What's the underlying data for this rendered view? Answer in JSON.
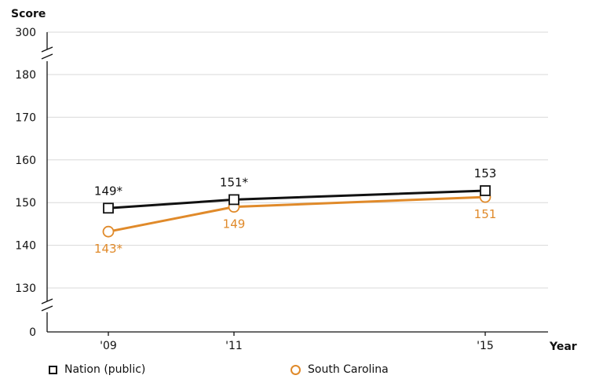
{
  "chart_data": {
    "type": "line",
    "ylabel": "Score",
    "xlabel": "Year",
    "categories": [
      "'09",
      "'11",
      "'15"
    ],
    "y_ticks": [
      "0",
      "130",
      "140",
      "150",
      "160",
      "170",
      "180",
      "300"
    ],
    "ylim": [
      130,
      180
    ],
    "axis_break": {
      "lower_value": 0,
      "upper_value": 300
    },
    "grid": true,
    "legend_position": "bottom",
    "series": [
      {
        "name": "Nation (public)",
        "marker": "square",
        "color": "#111111",
        "values": [
          148.7,
          150.7,
          152.8
        ],
        "labels": [
          "149*",
          "151*",
          "153"
        ]
      },
      {
        "name": "South Carolina",
        "marker": "circle",
        "color": "#e08a2a",
        "values": [
          143.2,
          149,
          151.3
        ],
        "labels": [
          "143*",
          "149",
          "151"
        ]
      }
    ]
  }
}
